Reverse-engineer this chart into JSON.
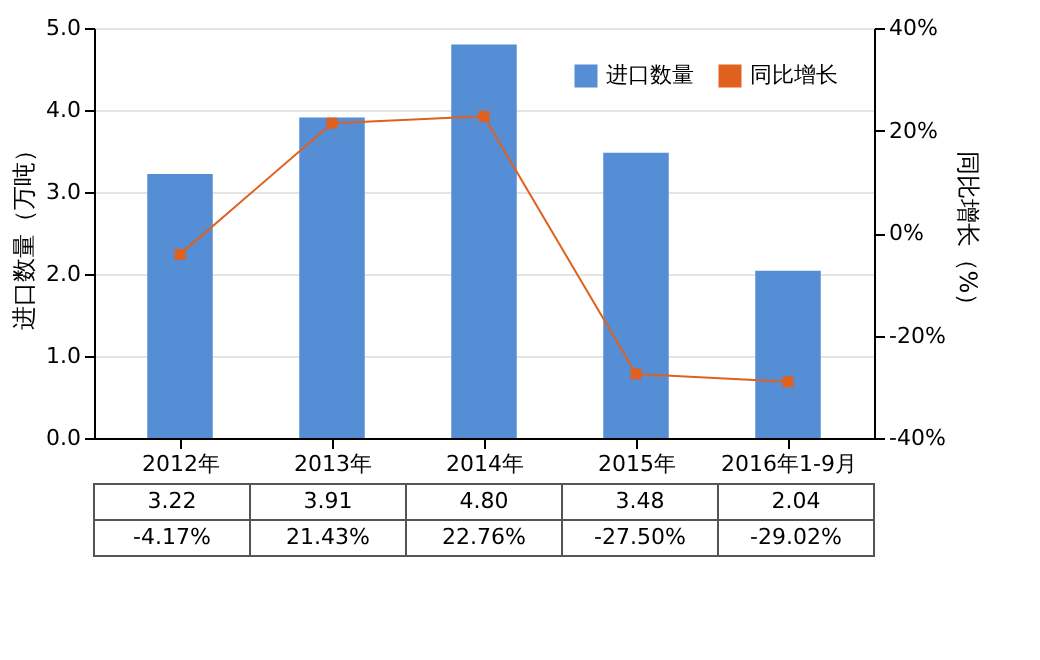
{
  "chart_data": {
    "type": "bar",
    "categories": [
      "2012年",
      "2013年",
      "2014年",
      "2015年",
      "2016年1-9月"
    ],
    "series": [
      {
        "name": "进口数量",
        "color": "#558ed5",
        "values": [
          3.22,
          3.91,
          4.8,
          3.48,
          2.04
        ],
        "value_labels": [
          "3.22",
          "3.91",
          "4.80",
          "3.48",
          "2.04"
        ]
      },
      {
        "name": "同比增长",
        "type": "line",
        "axis": "y2",
        "color": "#e0601e",
        "values": [
          -4.17,
          21.43,
          22.76,
          -27.5,
          -29.02
        ],
        "value_labels": [
          "-4.17%",
          "21.43%",
          "22.76%",
          "-27.50%",
          "-29.02%"
        ]
      }
    ],
    "ylabel": "进口数量（万吨）",
    "y2label": "同比增长（%）",
    "ylim": [
      0,
      5
    ],
    "yticks": [
      {
        "value": 0,
        "label": "0.0"
      },
      {
        "value": 1,
        "label": "1.0"
      },
      {
        "value": 2,
        "label": "2.0"
      },
      {
        "value": 3,
        "label": "3.0"
      },
      {
        "value": 4,
        "label": "4.0"
      },
      {
        "value": 5,
        "label": "5.0"
      }
    ],
    "y2lim": [
      -40,
      40
    ],
    "y2ticks": [
      {
        "value": -40,
        "label": "-40%"
      },
      {
        "value": -20,
        "label": "-20%"
      },
      {
        "value": 0,
        "label": "0%"
      },
      {
        "value": 20,
        "label": "20%"
      },
      {
        "value": 40,
        "label": "40%"
      }
    ],
    "grid": "y",
    "legend": "top right",
    "marker": "square",
    "line_style": "solid"
  }
}
